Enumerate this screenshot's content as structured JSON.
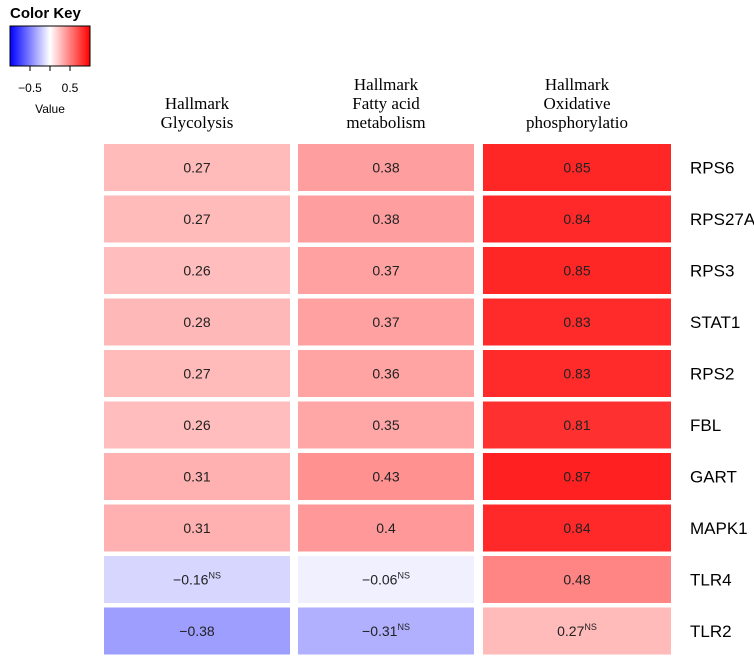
{
  "chart_data": {
    "type": "heatmap",
    "columns": [
      [
        "Hallmark",
        "Glycolysis"
      ],
      [
        "Hallmark",
        "Fatty acid",
        "metabolism"
      ],
      [
        "Hallmark",
        "Oxidative",
        "phosphorylatio"
      ]
    ],
    "rows": [
      "RPS6",
      "RPS27A",
      "RPS3",
      "STAT1",
      "RPS2",
      "FBL",
      "GART",
      "MAPK1",
      "TLR4",
      "TLR2"
    ],
    "values": [
      [
        0.27,
        0.38,
        0.85
      ],
      [
        0.27,
        0.38,
        0.84
      ],
      [
        0.26,
        0.37,
        0.85
      ],
      [
        0.28,
        0.37,
        0.83
      ],
      [
        0.27,
        0.36,
        0.83
      ],
      [
        0.26,
        0.35,
        0.81
      ],
      [
        0.31,
        0.43,
        0.87
      ],
      [
        0.31,
        0.4,
        0.84
      ],
      [
        -0.16,
        -0.06,
        0.48
      ],
      [
        -0.38,
        -0.31,
        0.27
      ]
    ],
    "labels": [
      [
        "0.27",
        "0.38",
        "0.85"
      ],
      [
        "0.27",
        "0.38",
        "0.84"
      ],
      [
        "0.26",
        "0.37",
        "0.85"
      ],
      [
        "0.28",
        "0.37",
        "0.83"
      ],
      [
        "0.27",
        "0.36",
        "0.83"
      ],
      [
        "0.26",
        "0.35",
        "0.81"
      ],
      [
        "0.31",
        "0.43",
        "0.87"
      ],
      [
        "0.31",
        "0.4",
        "0.84"
      ],
      [
        "−0.16",
        "−0.06",
        "0.48"
      ],
      [
        "−0.38",
        "−0.31",
        "0.27"
      ]
    ],
    "superscripts": [
      [
        "",
        "",
        ""
      ],
      [
        "",
        "",
        ""
      ],
      [
        "",
        "",
        ""
      ],
      [
        "",
        "",
        ""
      ],
      [
        "",
        "",
        ""
      ],
      [
        "",
        "",
        ""
      ],
      [
        "",
        "",
        ""
      ],
      [
        "",
        "",
        ""
      ],
      [
        "NS",
        "NS",
        ""
      ],
      [
        "",
        "NS",
        "NS"
      ]
    ],
    "color_scale": {
      "min": -1,
      "max": 1,
      "low": "#0000ff",
      "mid": "#ffffff",
      "high": "#ff0000"
    },
    "color_key": {
      "title": "Color Key",
      "xlabel": "Value",
      "tick_values": [
        -0.5,
        0,
        0.5
      ],
      "tick_labels": [
        "−0.5",
        "",
        "0.5"
      ]
    }
  }
}
